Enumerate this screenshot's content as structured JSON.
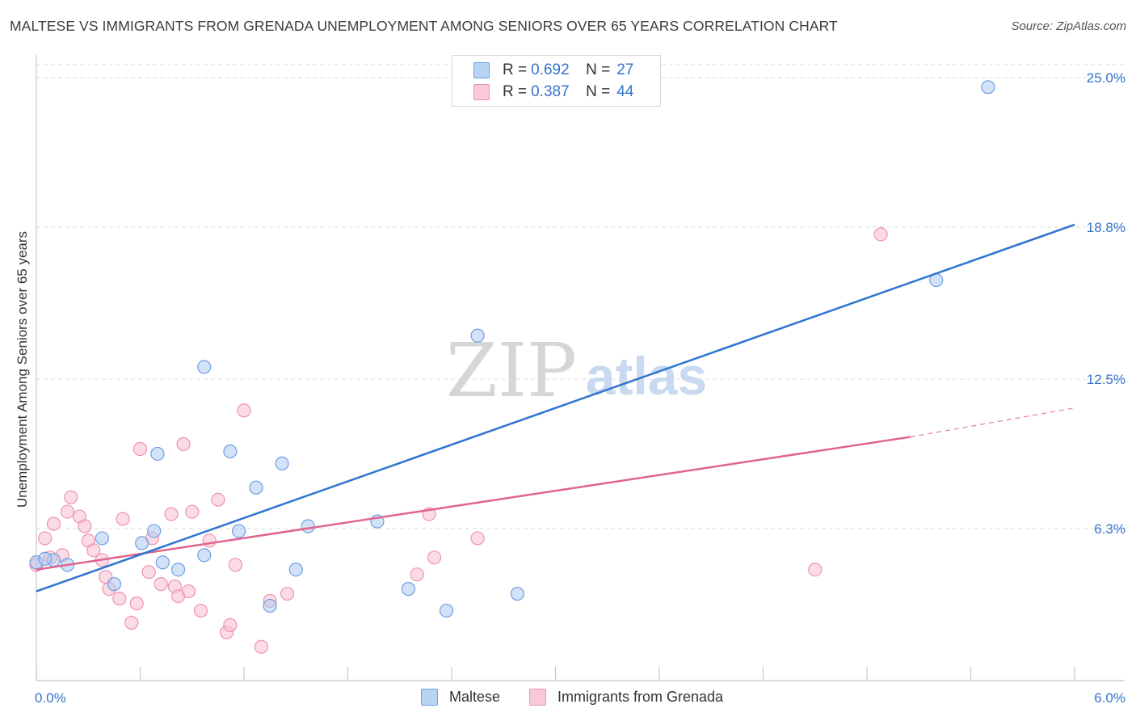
{
  "title": "MALTESE VS IMMIGRANTS FROM GRENADA UNEMPLOYMENT AMONG SENIORS OVER 65 YEARS CORRELATION CHART",
  "source": "Source: ZipAtlas.com",
  "watermark": {
    "zip": "ZIP",
    "atlas": "atlas"
  },
  "legend_top": [
    {
      "r_label": "R = ",
      "r_value": "0.692",
      "n_label": "N = ",
      "n_value": "27"
    },
    {
      "r_label": "R = ",
      "r_value": "0.387",
      "n_label": "N = ",
      "n_value": "44"
    }
  ],
  "legend_bottom": [
    "Maltese",
    "Immigrants from Grenada"
  ],
  "colors": {
    "maltese_fill": "#aecbf3",
    "maltese_stroke": "#6f9fe0",
    "maltese_line": "#2f74d0",
    "grenada_fill": "#f8bed0",
    "grenada_stroke": "#ee93b0",
    "grenada_line": "#e0648f",
    "axis_label": "#3573c9",
    "grid": "#dcdcdc"
  },
  "chart_data": {
    "type": "scatter",
    "title": "MALTESE VS IMMIGRANTS FROM GRENADA UNEMPLOYMENT AMONG SENIORS OVER 65 YEARS CORRELATION CHART",
    "xlabel": "",
    "ylabel": "Unemployment Among Seniors over 65 years",
    "xlim": [
      0,
      6.0
    ],
    "ylim": [
      0,
      25.8
    ],
    "x_tick_labels": [
      "0.0%",
      "6.0%"
    ],
    "y_ticks": [
      6.3,
      12.5,
      18.8,
      25.0
    ],
    "y_tick_labels": [
      "6.3%",
      "12.5%",
      "18.8%",
      "25.0%"
    ],
    "grid": true,
    "legend_position": "top-center",
    "series": [
      {
        "name": "Maltese",
        "r": 0.692,
        "n": 27,
        "trend": {
          "x0": 0.0,
          "y0": 3.7,
          "x1": 6.0,
          "y1": 18.9
        },
        "points": [
          [
            0.0,
            4.9
          ],
          [
            0.1,
            5.0
          ],
          [
            0.18,
            4.8
          ],
          [
            0.38,
            5.9
          ],
          [
            0.45,
            4.0
          ],
          [
            0.61,
            5.7
          ],
          [
            0.68,
            6.2
          ],
          [
            0.73,
            4.9
          ],
          [
            0.7,
            9.4
          ],
          [
            0.82,
            4.6
          ],
          [
            0.97,
            5.2
          ],
          [
            0.97,
            13.0
          ],
          [
            1.12,
            9.5
          ],
          [
            1.17,
            6.2
          ],
          [
            1.27,
            8.0
          ],
          [
            1.35,
            3.1
          ],
          [
            1.42,
            9.0
          ],
          [
            1.5,
            4.6
          ],
          [
            1.57,
            6.4
          ],
          [
            1.97,
            6.6
          ],
          [
            2.15,
            3.8
          ],
          [
            2.37,
            2.9
          ],
          [
            2.55,
            14.3
          ],
          [
            2.78,
            3.6
          ],
          [
            5.2,
            16.6
          ],
          [
            5.5,
            24.6
          ],
          [
            0.05,
            5.05
          ]
        ]
      },
      {
        "name": "Immigrants from Grenada",
        "r": 0.387,
        "n": 44,
        "trend": {
          "x0": 0.0,
          "y0": 4.6,
          "x1": 5.05,
          "y1": 10.1
        },
        "trend_dashed": {
          "x0": 5.05,
          "y0": 10.1,
          "x1": 6.0,
          "y1": 11.3
        },
        "points": [
          [
            0.0,
            4.8
          ],
          [
            0.05,
            5.9
          ],
          [
            0.1,
            6.5
          ],
          [
            0.15,
            5.2
          ],
          [
            0.18,
            7.0
          ],
          [
            0.2,
            7.6
          ],
          [
            0.25,
            6.8
          ],
          [
            0.28,
            6.4
          ],
          [
            0.3,
            5.8
          ],
          [
            0.33,
            5.4
          ],
          [
            0.38,
            5.0
          ],
          [
            0.4,
            4.3
          ],
          [
            0.42,
            3.8
          ],
          [
            0.48,
            3.4
          ],
          [
            0.5,
            6.7
          ],
          [
            0.55,
            2.4
          ],
          [
            0.58,
            3.2
          ],
          [
            0.6,
            9.6
          ],
          [
            0.65,
            4.5
          ],
          [
            0.67,
            5.9
          ],
          [
            0.72,
            4.0
          ],
          [
            0.78,
            6.9
          ],
          [
            0.8,
            3.9
          ],
          [
            0.82,
            3.5
          ],
          [
            0.85,
            9.8
          ],
          [
            0.88,
            3.7
          ],
          [
            0.9,
            7.0
          ],
          [
            0.95,
            2.9
          ],
          [
            1.0,
            5.8
          ],
          [
            1.05,
            7.5
          ],
          [
            1.1,
            2.0
          ],
          [
            1.12,
            2.3
          ],
          [
            1.15,
            4.8
          ],
          [
            1.2,
            11.2
          ],
          [
            1.3,
            1.4
          ],
          [
            1.35,
            3.3
          ],
          [
            1.45,
            3.6
          ],
          [
            2.27,
            6.9
          ],
          [
            2.2,
            4.4
          ],
          [
            2.3,
            5.1
          ],
          [
            2.55,
            5.9
          ],
          [
            4.5,
            4.6
          ],
          [
            4.88,
            18.5
          ],
          [
            0.08,
            5.1
          ]
        ]
      }
    ]
  }
}
